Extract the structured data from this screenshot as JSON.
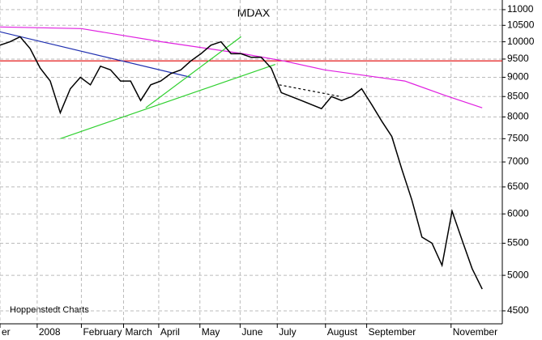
{
  "chart_data": {
    "type": "line",
    "title": "MDAX",
    "annotation": "Hoppenstedt Charts",
    "x": [
      0,
      1,
      2,
      3,
      4,
      5,
      6,
      7,
      8,
      9,
      10,
      11,
      12,
      13,
      14,
      15,
      16,
      17,
      18,
      19,
      20,
      21,
      22,
      23,
      24,
      25,
      26,
      27,
      28,
      29,
      30,
      31,
      32,
      33,
      34,
      35,
      36,
      37,
      38,
      39,
      40,
      41,
      42,
      43,
      44,
      45,
      46,
      47,
      48
    ],
    "values": [
      9900,
      10000,
      10150,
      9800,
      9250,
      8900,
      8100,
      8700,
      9000,
      8800,
      9300,
      9200,
      8900,
      8900,
      8400,
      8800,
      8900,
      9100,
      9200,
      9450,
      9650,
      9900,
      10000,
      9650,
      9650,
      9550,
      9550,
      9250,
      8600,
      8500,
      8400,
      8300,
      8200,
      8500,
      8400,
      8500,
      8700,
      8300,
      7900,
      7550,
      6850,
      6250,
      5600,
      5500,
      5150,
      6050,
      5550,
      5100,
      4800
    ],
    "color": "#000000",
    "lines": [
      {
        "color": "#e00000",
        "x": [
          0,
          50
        ],
        "values": [
          9450,
          9450
        ]
      },
      {
        "color": "#e020e0",
        "x": [
          0,
          8.1,
          16.1,
          24.2,
          28.2,
          32.3,
          36.3,
          40.3,
          44.4,
          48
        ],
        "values": [
          10450,
          10400,
          10000,
          9650,
          9450,
          9200,
          9050,
          8900,
          8520,
          8220
        ]
      },
      {
        "color": "#2030b0",
        "x": [
          0,
          19
        ],
        "values": [
          10300,
          9000
        ]
      },
      {
        "color": "#30d030",
        "x": [
          6,
          27.4
        ],
        "values": [
          7500,
          9350
        ]
      },
      {
        "color": "#30d030",
        "x": [
          14.5,
          24
        ],
        "values": [
          8220,
          10150
        ]
      },
      {
        "color": "#000000",
        "dashed": true,
        "x": [
          27.8,
          33.9
        ],
        "values": [
          8800,
          8500
        ]
      }
    ],
    "xlim": [
      0,
      50
    ],
    "xticks": [
      {
        "value": 0,
        "label": "er"
      },
      {
        "value": 3.7,
        "label": "2008"
      },
      {
        "value": 8.1,
        "label": "February"
      },
      {
        "value": 12.3,
        "label": "March"
      },
      {
        "value": 15.8,
        "label": "April"
      },
      {
        "value": 19.9,
        "label": "May"
      },
      {
        "value": 23.9,
        "label": "June"
      },
      {
        "value": 27.6,
        "label": "July"
      },
      {
        "value": 32.4,
        "label": "August"
      },
      {
        "value": 36.5,
        "label": "September"
      },
      {
        "value": 44.9,
        "label": "November"
      }
    ],
    "ylim": [
      4330,
      11320
    ],
    "yticks": [
      4500,
      5000,
      5500,
      6000,
      6500,
      7000,
      7500,
      8000,
      8500,
      9000,
      9500,
      10000,
      10500,
      11000
    ],
    "log_y": true,
    "grid": true
  }
}
